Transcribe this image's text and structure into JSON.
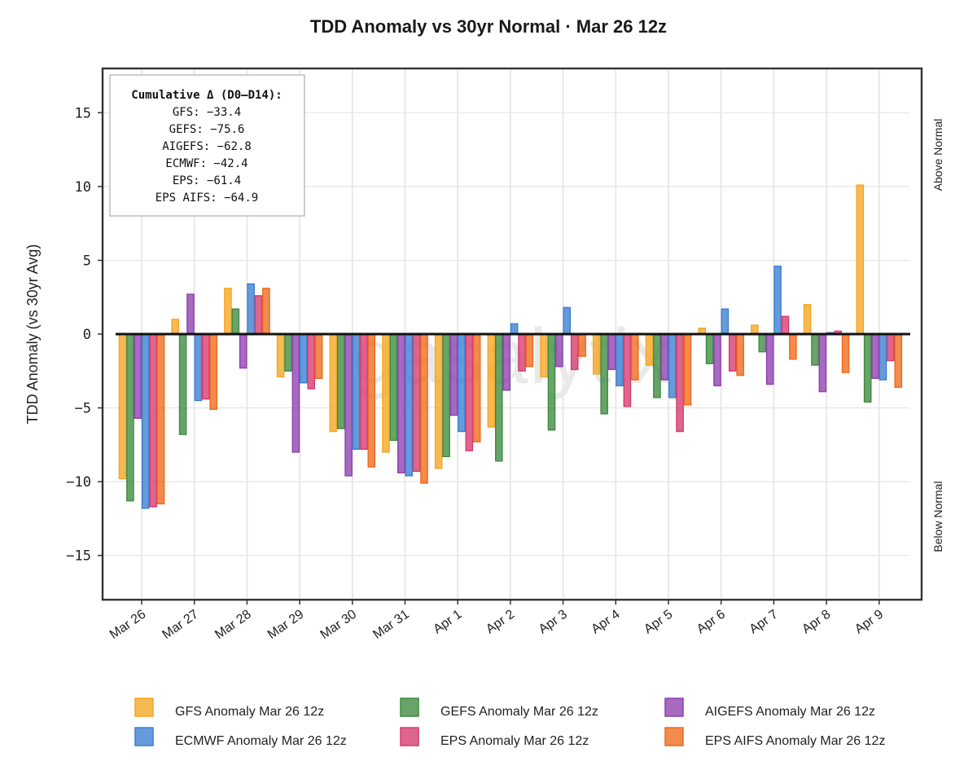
{
  "chart_data": {
    "type": "bar",
    "title": "TDD Anomaly vs 30yr Normal · Mar 26 12z",
    "ylabel": "TDD Anomaly (vs 30yr Avg)",
    "xlabel": "",
    "ylim": [
      -18,
      18
    ],
    "yticks": [
      -15,
      -10,
      -5,
      0,
      5,
      10,
      15
    ],
    "ytick_labels": [
      "−15",
      "−10",
      "−5",
      "0",
      "5",
      "10",
      "15"
    ],
    "grid": true,
    "categories": [
      "Mar 26",
      "Mar 27",
      "Mar 28",
      "Mar 29",
      "Mar 30",
      "Mar 31",
      "Apr 1",
      "Apr 2",
      "Apr 3",
      "Apr 4",
      "Apr 5",
      "Apr 6",
      "Apr 7",
      "Apr 8",
      "Apr 9"
    ],
    "right_labels": {
      "top": "Above Normal",
      "bottom": "Below Normal"
    },
    "watermark": "gasalytix",
    "legend_position": "bottom",
    "series": [
      {
        "name": "GFS Anomaly Mar 26 12z",
        "color": "#F5A623",
        "values": [
          -9.8,
          1.0,
          3.1,
          -2.9,
          -6.6,
          -8.0,
          -9.1,
          -6.3,
          -2.9,
          -2.7,
          -2.1,
          0.4,
          0.6,
          2.0,
          10.1
        ]
      },
      {
        "name": "GEFS Anomaly Mar 26 12z",
        "color": "#3D8B40",
        "values": [
          -11.3,
          -6.8,
          1.7,
          -2.5,
          -6.4,
          -7.2,
          -8.3,
          -8.6,
          -6.5,
          -5.4,
          -4.3,
          -2.0,
          -1.2,
          -2.1,
          -4.6
        ]
      },
      {
        "name": "AIGEFS Anomaly Mar 26 12z",
        "color": "#8E3FB0",
        "values": [
          -5.7,
          2.7,
          -2.3,
          -8.0,
          -9.6,
          -9.4,
          -5.5,
          -3.8,
          -2.2,
          -2.4,
          -3.1,
          -3.5,
          -3.4,
          -3.9,
          -3.0
        ]
      },
      {
        "name": "ECMWF Anomaly Mar 26 12z",
        "color": "#3A7FD1",
        "values": [
          -11.8,
          -4.5,
          3.4,
          -3.3,
          -7.8,
          -9.6,
          -6.6,
          0.7,
          1.8,
          -3.5,
          -4.3,
          1.7,
          4.6,
          0.1,
          -3.1
        ]
      },
      {
        "name": "EPS Anomaly Mar 26 12z",
        "color": "#D63A6E",
        "values": [
          -11.7,
          -4.4,
          2.6,
          -3.7,
          -7.8,
          -9.3,
          -7.9,
          -2.5,
          -2.4,
          -4.9,
          -6.6,
          -2.5,
          1.2,
          0.2,
          -1.8
        ]
      },
      {
        "name": "EPS AIFS Anomaly Mar 26 12z",
        "color": "#EE6A1B",
        "values": [
          -11.5,
          -5.1,
          3.1,
          -3.0,
          -9.0,
          -10.1,
          -7.3,
          -2.2,
          -1.5,
          -3.1,
          -4.8,
          -2.8,
          -1.7,
          -2.6,
          -3.6
        ]
      }
    ],
    "annotation": {
      "title": "Cumulative Δ (D0–D14):",
      "lines": [
        "GFS: −33.4",
        "GEFS: −75.6",
        "AIGEFS: −62.8",
        "ECMWF: −42.4",
        "EPS: −61.4",
        "EPS AIFS: −64.9"
      ]
    },
    "legend_order": [
      0,
      1,
      2,
      3,
      4,
      5
    ]
  }
}
